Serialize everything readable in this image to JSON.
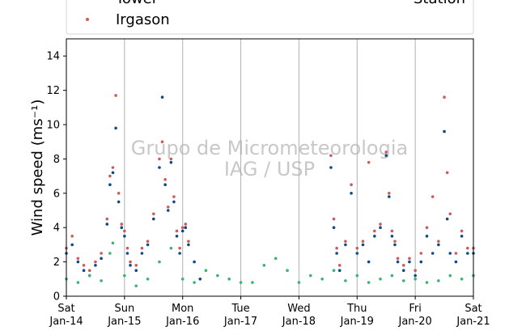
{
  "chart_data": {
    "type": "scatter",
    "title": "",
    "ylabel": "Wind speed (ms⁻¹)",
    "ylim": [
      0,
      15
    ],
    "yticks": [
      0,
      2,
      4,
      6,
      8,
      10,
      12,
      14
    ],
    "xlim_days": [
      0,
      7
    ],
    "xticks": [
      {
        "top": "Sat",
        "bottom": "Jan-14"
      },
      {
        "top": "Sun",
        "bottom": "Jan-15"
      },
      {
        "top": "Mon",
        "bottom": "Jan-16"
      },
      {
        "top": "Tue",
        "bottom": "Jan-17"
      },
      {
        "top": "Wed",
        "bottom": "Jan-18"
      },
      {
        "top": "Thu",
        "bottom": "Jan-19"
      },
      {
        "top": "Fri",
        "bottom": "Jan-20"
      },
      {
        "top": "Sat",
        "bottom": "Jan-21"
      }
    ],
    "grid": "vertical",
    "legend": {
      "placement": "top",
      "entries": [
        {
          "name": "Tower",
          "color": "#0b4a8b"
        },
        {
          "name": "Irgason",
          "color": "#d05a5a"
        },
        {
          "name": "Station",
          "color": "#3cb371"
        }
      ]
    },
    "watermark": [
      "Grupo de Micrometeorologia",
      "IAG / USP"
    ],
    "series": [
      {
        "name": "Tower",
        "color": "#0b4a8b",
        "x": [
          0.0,
          0.1,
          0.2,
          0.3,
          0.4,
          0.5,
          0.6,
          0.7,
          0.75,
          0.8,
          0.85,
          0.9,
          0.95,
          1.0,
          1.05,
          1.1,
          1.2,
          1.3,
          1.4,
          1.5,
          1.6,
          1.65,
          1.7,
          1.75,
          1.8,
          1.85,
          1.9,
          1.95,
          2.0,
          2.05,
          2.1,
          2.2,
          2.3,
          4.55,
          4.6,
          4.65,
          4.7,
          4.8,
          4.9,
          5.0,
          5.1,
          5.2,
          5.3,
          5.4,
          5.5,
          5.55,
          5.6,
          5.65,
          5.7,
          5.8,
          5.9,
          6.0,
          6.1,
          6.2,
          6.3,
          6.4,
          6.5,
          6.55,
          6.6,
          6.7,
          6.8,
          6.9,
          7.0
        ],
        "y": [
          2.5,
          3.0,
          2.0,
          1.5,
          1.2,
          1.8,
          2.2,
          4.2,
          6.5,
          7.2,
          9.8,
          5.5,
          4.0,
          3.5,
          2.5,
          1.8,
          1.5,
          2.5,
          3.0,
          4.5,
          7.5,
          11.6,
          6.5,
          5.0,
          7.8,
          5.5,
          3.5,
          2.5,
          3.8,
          4.0,
          3.0,
          2.0,
          1.0,
          7.5,
          4.0,
          2.5,
          1.5,
          3.0,
          6.0,
          2.5,
          3.0,
          2.0,
          3.5,
          4.0,
          8.2,
          5.8,
          3.5,
          3.0,
          2.0,
          1.5,
          2.0,
          1.2,
          2.0,
          3.5,
          2.5,
          3.0,
          9.6,
          4.5,
          2.5,
          2.0,
          3.5,
          2.5,
          2.5
        ]
      },
      {
        "name": "Irgason",
        "color": "#d05a5a",
        "x": [
          0.0,
          0.1,
          0.2,
          0.3,
          0.4,
          0.5,
          0.6,
          0.7,
          0.75,
          0.8,
          0.85,
          0.9,
          0.95,
          1.0,
          1.05,
          1.1,
          1.2,
          1.3,
          1.4,
          1.5,
          1.6,
          1.65,
          1.7,
          1.75,
          1.8,
          1.85,
          1.9,
          1.95,
          2.0,
          2.05,
          2.1,
          4.55,
          4.6,
          4.65,
          4.7,
          4.8,
          4.9,
          5.0,
          5.1,
          5.2,
          5.3,
          5.4,
          5.5,
          5.55,
          5.6,
          5.65,
          5.7,
          5.8,
          5.9,
          6.0,
          6.1,
          6.2,
          6.3,
          6.4,
          6.5,
          6.55,
          6.6,
          6.7,
          6.8,
          6.9,
          7.0
        ],
        "y": [
          2.8,
          3.5,
          2.2,
          1.8,
          1.5,
          2.0,
          2.5,
          4.5,
          7.0,
          7.5,
          11.7,
          6.0,
          4.2,
          3.8,
          2.8,
          2.0,
          1.8,
          2.8,
          3.2,
          4.8,
          8.0,
          9.0,
          6.8,
          5.2,
          8.0,
          5.8,
          3.8,
          2.8,
          4.0,
          4.2,
          3.2,
          8.2,
          4.5,
          2.8,
          1.8,
          3.2,
          6.5,
          2.8,
          3.2,
          7.8,
          3.8,
          4.2,
          8.4,
          6.0,
          3.8,
          3.2,
          2.2,
          1.8,
          2.2,
          1.5,
          2.5,
          4.0,
          5.8,
          3.2,
          11.6,
          7.2,
          4.8,
          2.5,
          3.8,
          2.8,
          2.8
        ]
      },
      {
        "name": "Station",
        "color": "#3cb371",
        "x": [
          0.0,
          0.2,
          0.4,
          0.6,
          0.75,
          0.8,
          1.0,
          1.2,
          1.4,
          1.6,
          1.8,
          2.0,
          2.2,
          2.4,
          2.6,
          2.8,
          3.0,
          3.2,
          3.4,
          3.6,
          3.8,
          4.0,
          4.2,
          4.4,
          4.6,
          4.8,
          5.0,
          5.2,
          5.4,
          5.6,
          5.8,
          6.0,
          6.2,
          6.4,
          6.6,
          6.8,
          7.0
        ],
        "y": [
          1.0,
          0.8,
          1.2,
          0.9,
          2.5,
          3.1,
          1.2,
          0.6,
          1.0,
          2.0,
          2.8,
          1.0,
          0.8,
          1.5,
          1.2,
          1.0,
          0.8,
          0.8,
          1.8,
          2.2,
          1.5,
          0.8,
          1.2,
          1.0,
          1.5,
          0.9,
          1.2,
          0.8,
          1.0,
          1.2,
          0.9,
          1.0,
          0.8,
          0.9,
          1.2,
          1.0,
          1.2
        ]
      }
    ]
  }
}
